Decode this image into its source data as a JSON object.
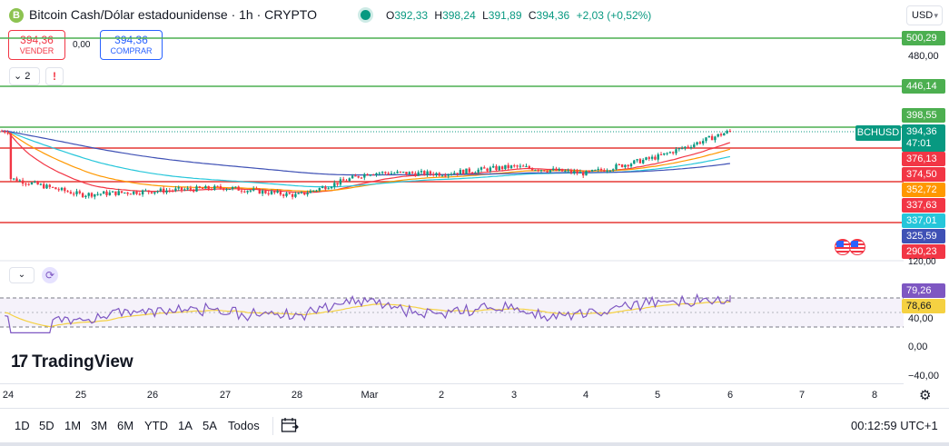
{
  "header": {
    "symbol_icon_letter": "B",
    "title": "Bitcoin Cash/Dólar estadounidense · 1h · CRYPTO",
    "ohlc": {
      "o_key": "O",
      "o": "392,33",
      "h_key": "H",
      "h": "398,24",
      "l_key": "L",
      "l": "391,89",
      "c_key": "C",
      "c": "394,36",
      "change": "+2,03 (+0,52%)"
    },
    "currency": "USD"
  },
  "trade": {
    "sell_price": "394,36",
    "sell_label": "VENDER",
    "spread": "0,00",
    "buy_price": "394,36",
    "buy_label": "COMPRAR"
  },
  "indicators_toggle": {
    "label": "2"
  },
  "warning_label": "!",
  "price_axis": {
    "labels": [
      "480,00",
      "120,00"
    ],
    "tags": {
      "l500": "500,29",
      "l446": "446,14",
      "l398": "398,55",
      "last": "394,36",
      "countdown": "47:01",
      "r376": "376,13",
      "r374": "374,50",
      "o352": "352,72",
      "r337": "337,63",
      "c337": "337,01",
      "n325": "325,59",
      "r290": "290,23"
    },
    "symbol_tag": "BCHUSD"
  },
  "rsi_axis": {
    "labels": [
      "40,00",
      "0,00",
      "−40,00"
    ],
    "tag_rsi": "79,26",
    "tag_ma": "78,66"
  },
  "logo": {
    "mark": "17",
    "name": "TradingView"
  },
  "time_axis": [
    "24",
    "25",
    "26",
    "27",
    "28",
    "Mar",
    "2",
    "3",
    "4",
    "5",
    "6",
    "7",
    "8"
  ],
  "bottom_bar": {
    "ranges": [
      "1D",
      "5D",
      "1M",
      "3M",
      "6M",
      "YTD",
      "1A",
      "5A",
      "Todos"
    ],
    "clock": "00:12:59 UTC+1"
  },
  "colors": {
    "up": "#089981",
    "down": "#f23645",
    "level_green": "#4caf50",
    "level_red": "#e53935",
    "rsi_line": "#7e57c2",
    "rsi_ma": "#f5d142"
  },
  "chart_data": {
    "type": "candlestick",
    "symbol": "BCHUSD",
    "interval": "1h",
    "x_range": [
      "24",
      "8 Mar"
    ],
    "horizontal_levels": [
      500.29,
      446.14,
      398.55,
      376.13,
      337.63
    ],
    "close_path": [
      {
        "x": "24",
        "y": 341
      },
      {
        "x": "25",
        "y": 322
      },
      {
        "x": "26",
        "y": 326
      },
      {
        "x": "27",
        "y": 330
      },
      {
        "x": "28",
        "y": 321
      },
      {
        "x": "Mar",
        "y": 347
      },
      {
        "x": "2",
        "y": 346
      },
      {
        "x": "3",
        "y": 354
      },
      {
        "x": "4",
        "y": 346
      },
      {
        "x": "5",
        "y": 365
      },
      {
        "x": "6",
        "y": 394.36
      }
    ],
    "moving_averages": [
      {
        "color": "#f23645",
        "last": 376.13
      },
      {
        "color": "#ff9800",
        "last": 352.72
      },
      {
        "color": "#26c6da",
        "last": 337.01
      },
      {
        "color": "#3f51b5",
        "last": 325.59
      }
    ],
    "rsi": {
      "last": 79.26,
      "ma_last": 78.66,
      "band_upper": 70,
      "band_lower": 30
    }
  }
}
